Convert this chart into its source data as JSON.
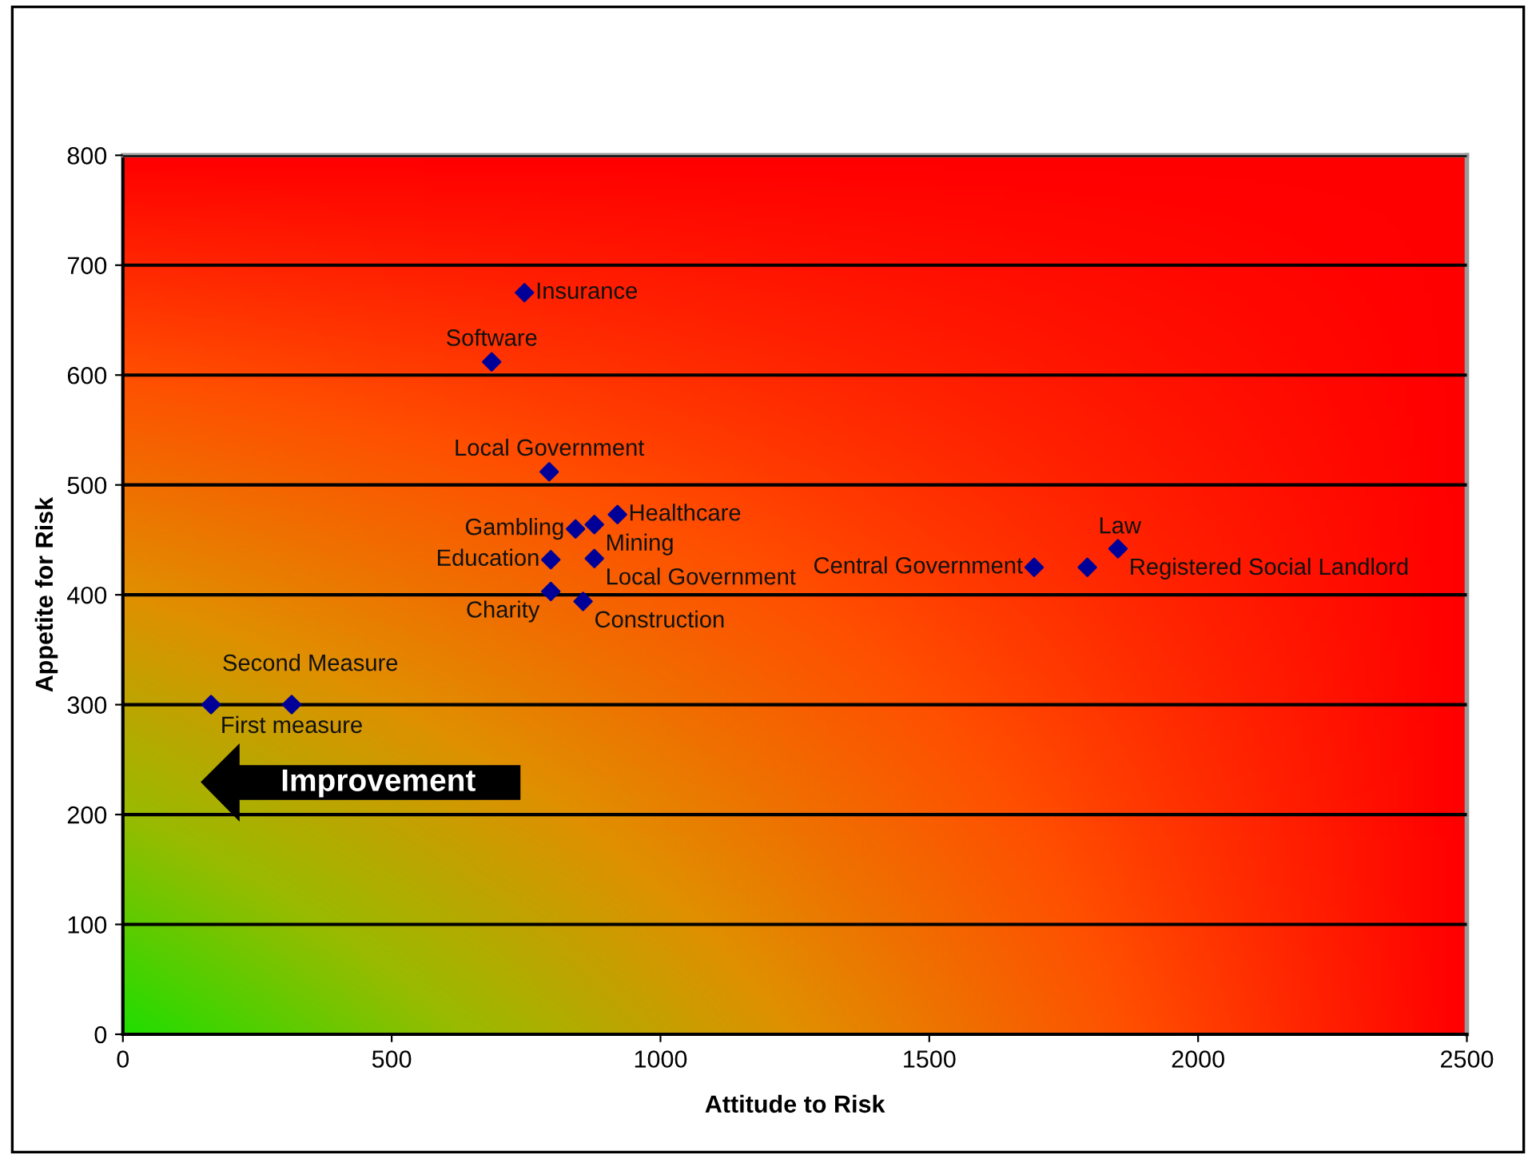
{
  "chart_data": {
    "type": "scatter",
    "xlabel": "Attitude to Risk",
    "ylabel": "Appetite for Risk",
    "x": [
      747,
      686,
      793,
      920,
      877,
      842,
      796,
      877,
      796,
      856,
      1695,
      1794,
      1851,
      164,
      314
    ],
    "series": [
      {
        "color": "#000099",
        "values": [
          675,
          612,
          512,
          473,
          464,
          460,
          432,
          433,
          403,
          394,
          425,
          425,
          442,
          300,
          300
        ]
      }
    ],
    "marker": "diamond",
    "xlim": [
      0,
      2500
    ],
    "xticks": [
      0,
      500,
      1000,
      1500,
      2000,
      2500
    ],
    "ylim": [
      0,
      800
    ],
    "yticks": [
      0,
      100,
      200,
      300,
      400,
      500,
      600,
      700,
      800
    ],
    "grid": "y",
    "annotations": [
      {
        "text": "Insurance",
        "x": 747,
        "y": 675
      },
      {
        "text": "Software",
        "x": 686,
        "y": 612
      },
      {
        "text": "Local Government",
        "x": 793,
        "y": 512
      },
      {
        "text": "Healthcare",
        "x": 920,
        "y": 473
      },
      {
        "text": "Mining",
        "x": 877,
        "y": 464
      },
      {
        "text": "Gambling",
        "x": 842,
        "y": 460
      },
      {
        "text": "Education",
        "x": 796,
        "y": 432
      },
      {
        "text": "Local Government",
        "x": 877,
        "y": 433
      },
      {
        "text": "Charity",
        "x": 796,
        "y": 403
      },
      {
        "text": "Construction",
        "x": 856,
        "y": 394
      },
      {
        "text": "Central Government",
        "x": 1695,
        "y": 425
      },
      {
        "text": "Law",
        "x": 1794,
        "y": 425
      },
      {
        "text": "Registered Social Landlord",
        "x": 1851,
        "y": 442
      },
      {
        "text": "Second Measure",
        "x": 164,
        "y": 300
      },
      {
        "text": "First measure",
        "x": 314,
        "y": 300
      },
      "Improvement"
    ]
  }
}
